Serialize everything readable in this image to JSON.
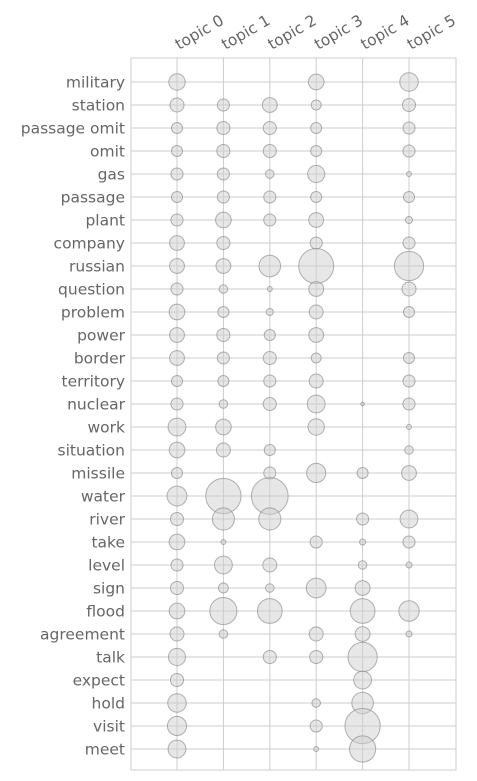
{
  "chart_data": {
    "type": "scatter",
    "encoding": "bubble-matrix",
    "grid": true,
    "columns": [
      "topic 0",
      "topic 1",
      "topic 2",
      "topic 3",
      "topic 4",
      "topic 5"
    ],
    "rows": [
      "military",
      "station",
      "passage omit",
      "omit",
      "gas",
      "passage",
      "plant",
      "company",
      "russian",
      "question",
      "problem",
      "power",
      "border",
      "territory",
      "nuclear",
      "work",
      "situation",
      "missile",
      "water",
      "river",
      "take",
      "level",
      "sign",
      "flood",
      "agreement",
      "talk",
      "expect",
      "hold",
      "visit",
      "meet"
    ],
    "values": [
      [
        0.22,
        0,
        0,
        0.2,
        0,
        0.28
      ],
      [
        0.16,
        0.12,
        0.18,
        0.08,
        0,
        0.14
      ],
      [
        0.1,
        0.14,
        0.14,
        0.1,
        0,
        0.12
      ],
      [
        0.1,
        0.14,
        0.14,
        0.1,
        0,
        0.12
      ],
      [
        0.12,
        0.12,
        0.06,
        0.24,
        0,
        0.02
      ],
      [
        0.1,
        0.12,
        0.12,
        0.1,
        0,
        0.1
      ],
      [
        0.12,
        0.2,
        0.12,
        0.18,
        0,
        0.04
      ],
      [
        0.18,
        0.14,
        0,
        0.12,
        0,
        0.12
      ],
      [
        0.18,
        0.18,
        0.38,
        1.0,
        0,
        0.7
      ],
      [
        0.12,
        0.06,
        0.02,
        0.18,
        0,
        0.16
      ],
      [
        0.2,
        0.1,
        0.04,
        0.16,
        0,
        0.1
      ],
      [
        0.18,
        0.14,
        0.1,
        0.18,
        0,
        0
      ],
      [
        0.18,
        0.12,
        0.14,
        0.08,
        0,
        0.1
      ],
      [
        0.1,
        0.1,
        0.12,
        0.16,
        0,
        0.12
      ],
      [
        0.12,
        0.06,
        0.14,
        0.26,
        0.01,
        0.12
      ],
      [
        0.26,
        0.2,
        0,
        0.22,
        0,
        0.02
      ],
      [
        0.2,
        0.16,
        0.1,
        0,
        0,
        0.06
      ],
      [
        0.1,
        0,
        0.12,
        0.3,
        0.1,
        0.18
      ],
      [
        0.32,
        1.02,
        1.1,
        0,
        0,
        0
      ],
      [
        0.14,
        0.4,
        0.4,
        0,
        0.12,
        0.26
      ],
      [
        0.2,
        0.02,
        0,
        0.12,
        0.03,
        0.12
      ],
      [
        0.12,
        0.26,
        0.16,
        0,
        0.06,
        0.03
      ],
      [
        0.14,
        0.08,
        0.06,
        0.32,
        0.18,
        0
      ],
      [
        0.2,
        0.6,
        0.5,
        0,
        0.5,
        0.34
      ],
      [
        0.16,
        0.06,
        0,
        0.16,
        0.18,
        0.03
      ],
      [
        0.24,
        0,
        0.14,
        0.14,
        0.7,
        0
      ],
      [
        0.14,
        0,
        0,
        0,
        0.26,
        0
      ],
      [
        0.28,
        0,
        0,
        0.06,
        0.38,
        0
      ],
      [
        0.3,
        0,
        0,
        0.12,
        1.02,
        0
      ],
      [
        0.26,
        0,
        0,
        0.02,
        0.56,
        0
      ]
    ]
  }
}
